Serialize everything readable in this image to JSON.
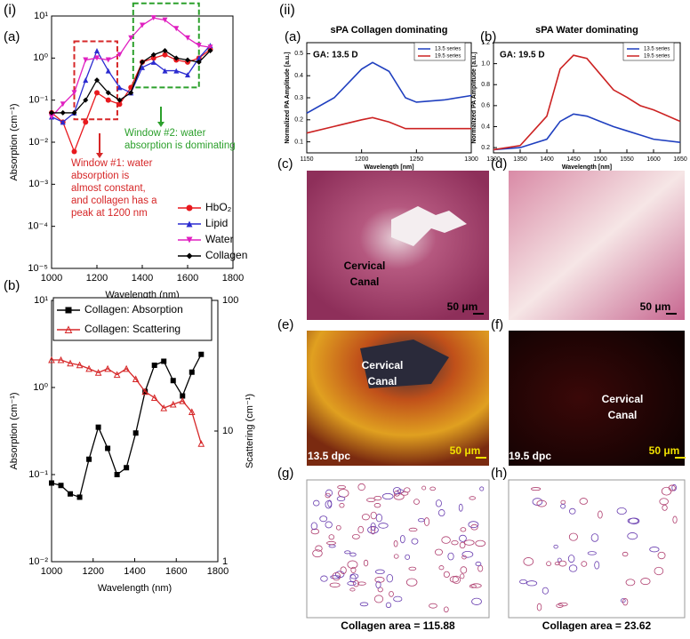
{
  "section_labels": [
    "(i)",
    "(ii)"
  ],
  "chart_data": [
    {
      "type": "line",
      "panel_label": "(a)",
      "x_label": "Wavelength (nm)",
      "y_label": "Absorption (cm⁻¹)",
      "xlim": [
        1000,
        1800
      ],
      "xticks": [
        1000,
        1200,
        1400,
        1600,
        1800
      ],
      "log_y": true,
      "ylim": [
        1e-05,
        10
      ],
      "yticks": [
        {
          "value": 1e-05,
          "label": "10⁻⁵"
        },
        {
          "value": 0.0001,
          "label": "10⁻⁴"
        },
        {
          "value": 0.001,
          "label": "10⁻³"
        },
        {
          "value": 0.01,
          "label": "10⁻²"
        },
        {
          "value": 0.1,
          "label": "10⁻¹"
        },
        {
          "value": 1,
          "label": "10⁰"
        },
        {
          "value": 10,
          "label": "10¹"
        }
      ],
      "legend": "lower right",
      "x": [
        1000,
        1050,
        1100,
        1150,
        1200,
        1250,
        1300,
        1350,
        1400,
        1450,
        1500,
        1550,
        1600,
        1650,
        1700
      ],
      "series": [
        {
          "name": "HbO₂",
          "color": "#e8191e",
          "marker": "circle",
          "values": [
            0.05,
            0.03,
            0.006,
            0.03,
            0.15,
            0.1,
            0.08,
            0.2,
            0.8,
            1.0,
            1.2,
            0.9,
            0.8,
            1.0,
            1.6
          ]
        },
        {
          "name": "Lipid",
          "color": "#2b2bd0",
          "marker": "triangle",
          "values": [
            0.04,
            0.03,
            0.05,
            0.3,
            1.5,
            0.5,
            0.2,
            0.15,
            0.6,
            0.8,
            0.5,
            0.5,
            0.4,
            1.0,
            2.0
          ]
        },
        {
          "name": "Water",
          "color": "#e020c0",
          "marker": "triangle-down",
          "values": [
            0.04,
            0.08,
            0.15,
            0.9,
            1.0,
            0.9,
            1.2,
            3,
            6,
            9,
            8,
            5,
            3,
            2,
            1.8
          ]
        },
        {
          "name": "Collagen",
          "color": "#000000",
          "marker": "diamond",
          "values": [
            0.05,
            0.05,
            0.05,
            0.1,
            0.3,
            0.15,
            0.1,
            0.15,
            0.8,
            1.2,
            1.5,
            1.0,
            0.9,
            0.8,
            1.5
          ]
        }
      ],
      "regions": [
        {
          "xlim": [
            1100,
            1290
          ],
          "ylim": [
            0.035,
            2.5
          ],
          "color": "#d62728"
        },
        {
          "xlim": [
            1360,
            1650
          ],
          "ylim": [
            0.2,
            20
          ],
          "color": "#2ca02c"
        }
      ],
      "annotations": [
        {
          "lines": [
            "Window #1: water",
            "absorption is",
            "almost constant,",
            "and collagen has a",
            "peak at 1200 nm"
          ],
          "color": "#d62728"
        },
        {
          "lines": [
            "Window #2: water",
            "absorption is dominating"
          ],
          "color": "#2ca02c"
        }
      ]
    },
    {
      "type": "line",
      "panel_label": "(b)",
      "x_label": "Wavelength (nm)",
      "y_label": "Absorption (cm⁻¹)",
      "y2_label": "Scattering (cm⁻¹)",
      "xlim": [
        1000,
        1800
      ],
      "xticks": [
        1000,
        1200,
        1400,
        1600,
        1800
      ],
      "log_y": true,
      "ylim": [
        0.01,
        10
      ],
      "yticks": [
        {
          "value": 0.01,
          "label": "10⁻²"
        },
        {
          "value": 0.1,
          "label": "10⁻¹"
        },
        {
          "value": 1,
          "label": "10⁰"
        },
        {
          "value": 10,
          "label": "10¹"
        }
      ],
      "log_y2": true,
      "y2lim": [
        1,
        100
      ],
      "y2ticks": [
        1,
        10,
        100
      ],
      "legend": "upper left",
      "x": [
        1000,
        1045,
        1090,
        1135,
        1180,
        1225,
        1270,
        1315,
        1360,
        1405,
        1450,
        1495,
        1540,
        1585,
        1630,
        1675,
        1720
      ],
      "series": [
        {
          "name": "Collagen: Absorption",
          "color": "#000000",
          "marker": "square",
          "values": [
            0.08,
            0.075,
            0.06,
            0.055,
            0.15,
            0.35,
            0.2,
            0.1,
            0.12,
            0.3,
            0.9,
            1.8,
            2.0,
            1.2,
            0.8,
            1.5,
            2.4
          ]
        },
        {
          "name": "Collagen: Scattering",
          "color": "#d62728",
          "marker": "triangle-open",
          "axis": "y2",
          "values": [
            35,
            35,
            33,
            32,
            30,
            28,
            30,
            27,
            30,
            25,
            20,
            18,
            15,
            16,
            17,
            14,
            8
          ]
        }
      ]
    },
    {
      "type": "line",
      "panel_label": "(a)",
      "title": "sPA Collagen dominating",
      "x_label": "Wavelength [nm]",
      "y_label": "Normalized PA Amplitude [a.u.]",
      "xlim": [
        1150,
        1300
      ],
      "xticks": [
        1150,
        1200,
        1250,
        1300
      ],
      "ylim": [
        0.05,
        0.55
      ],
      "yticks": [
        0.1,
        0.2,
        0.3,
        0.4,
        0.5
      ],
      "legend": "upper right",
      "annotations": [
        {
          "lines": [
            "GA: 13.5 D"
          ],
          "color": "#000000"
        }
      ],
      "x": [
        1150,
        1175,
        1200,
        1210,
        1225,
        1240,
        1250,
        1275,
        1300
      ],
      "series": [
        {
          "name": "13.5 series",
          "color": "#1f3fbf",
          "values": [
            0.23,
            0.3,
            0.43,
            0.46,
            0.42,
            0.3,
            0.28,
            0.29,
            0.31
          ]
        },
        {
          "name": "19.5 series",
          "color": "#cc2222",
          "values": [
            0.14,
            0.17,
            0.2,
            0.21,
            0.19,
            0.16,
            0.16,
            0.16,
            0.16
          ]
        }
      ]
    },
    {
      "type": "line",
      "panel_label": "(b)",
      "title": "sPA Water dominating",
      "x_label": "Wavelength [nm]",
      "y_label": "Normalized PA Amplitude [a.u.]",
      "xlim": [
        1300,
        1650
      ],
      "xticks": [
        1300,
        1350,
        1400,
        1450,
        1500,
        1550,
        1600,
        1650
      ],
      "ylim": [
        0.15,
        1.2
      ],
      "yticks": [
        0.2,
        0.4,
        0.6,
        0.8,
        {
          "value": 1,
          "label": "1.0"
        },
        1.2
      ],
      "legend": "upper right",
      "annotations": [
        {
          "lines": [
            "GA: 19.5 D"
          ],
          "color": "#000000"
        }
      ],
      "x": [
        1300,
        1350,
        1400,
        1425,
        1450,
        1475,
        1500,
        1525,
        1550,
        1575,
        1600,
        1650
      ],
      "series": [
        {
          "name": "13.5 series",
          "color": "#1f3fbf",
          "values": [
            0.18,
            0.2,
            0.28,
            0.45,
            0.52,
            0.5,
            0.45,
            0.4,
            0.36,
            0.32,
            0.28,
            0.25
          ]
        },
        {
          "name": "19.5 series",
          "color": "#cc2222",
          "values": [
            0.18,
            0.22,
            0.5,
            0.95,
            1.08,
            1.05,
            0.9,
            0.75,
            0.68,
            0.6,
            0.56,
            0.45
          ]
        }
      ]
    }
  ],
  "image_panels": [
    {
      "panel_label": "(c)",
      "labels": [
        "Cervical",
        "Canal",
        "50 μm"
      ]
    },
    {
      "panel_label": "(d)",
      "labels": [
        "50 μm"
      ]
    },
    {
      "panel_label": "(e)",
      "labels": [
        "Cervical",
        "Canal",
        "13.5 dpc",
        "50 μm"
      ]
    },
    {
      "panel_label": "(f)",
      "labels": [
        "Cervical",
        "Canal",
        "19.5 dpc",
        "50 μm"
      ]
    },
    {
      "panel_label": "(g)",
      "caption": "Collagen area = 115.88"
    },
    {
      "panel_label": "(h)",
      "caption": "Collagen area = 23.62"
    }
  ]
}
